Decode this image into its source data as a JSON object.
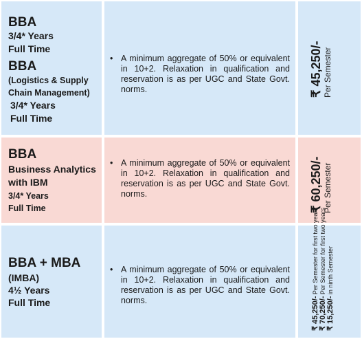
{
  "rows": [
    {
      "programs": [
        {
          "name": "BBA",
          "duration": "3/4* Years",
          "mode": "Full Time"
        },
        {
          "name": "BBA",
          "specialization_line1": "(Logistics & Supply",
          "specialization_line2": "Chain Management)",
          "duration": "3/4* Years",
          "mode": "Full Time"
        }
      ],
      "bullet": "•",
      "criteria": "A minimum aggregate of 50% or equivalent in 10+2. Relaxation in qualification and reservation is as per UGC and State Govt. norms.",
      "fee": {
        "amount": "₹ 45,250/-",
        "period": "Per Semester"
      }
    },
    {
      "programs": [
        {
          "name": "BBA",
          "specialization_line1": "Business Analytics",
          "specialization_line2": "with IBM",
          "duration": "3/4* Years",
          "mode": "Full Time"
        }
      ],
      "bullet": "•",
      "criteria": "A minimum aggregate of 50% or equivalent in 10+2. Relaxation in qualification and reservation is as per UGC and State Govt. norms.",
      "fee": {
        "amount": "₹ 60,250/-",
        "period": "Per Semester"
      }
    },
    {
      "programs": [
        {
          "name": "BBA + MBA",
          "specialization_line1": "(IMBA)",
          "duration": "4½ Years",
          "mode": "Full Time"
        }
      ],
      "bullet": "•",
      "criteria": "A minimum aggregate of 50% or equivalent in 10+2. Relaxation in qualification and reservation is as per UGC and State Govt. norms.",
      "fee_lines": [
        {
          "amount": "₹ 45,250/-",
          "note": " Per Semester for first two years"
        },
        {
          "amount": "₹ 70,250/-",
          "note": " Per Semester for first two years"
        },
        {
          "amount": "₹ 15,250/-",
          "note": " in ninth Semester"
        }
      ]
    }
  ]
}
